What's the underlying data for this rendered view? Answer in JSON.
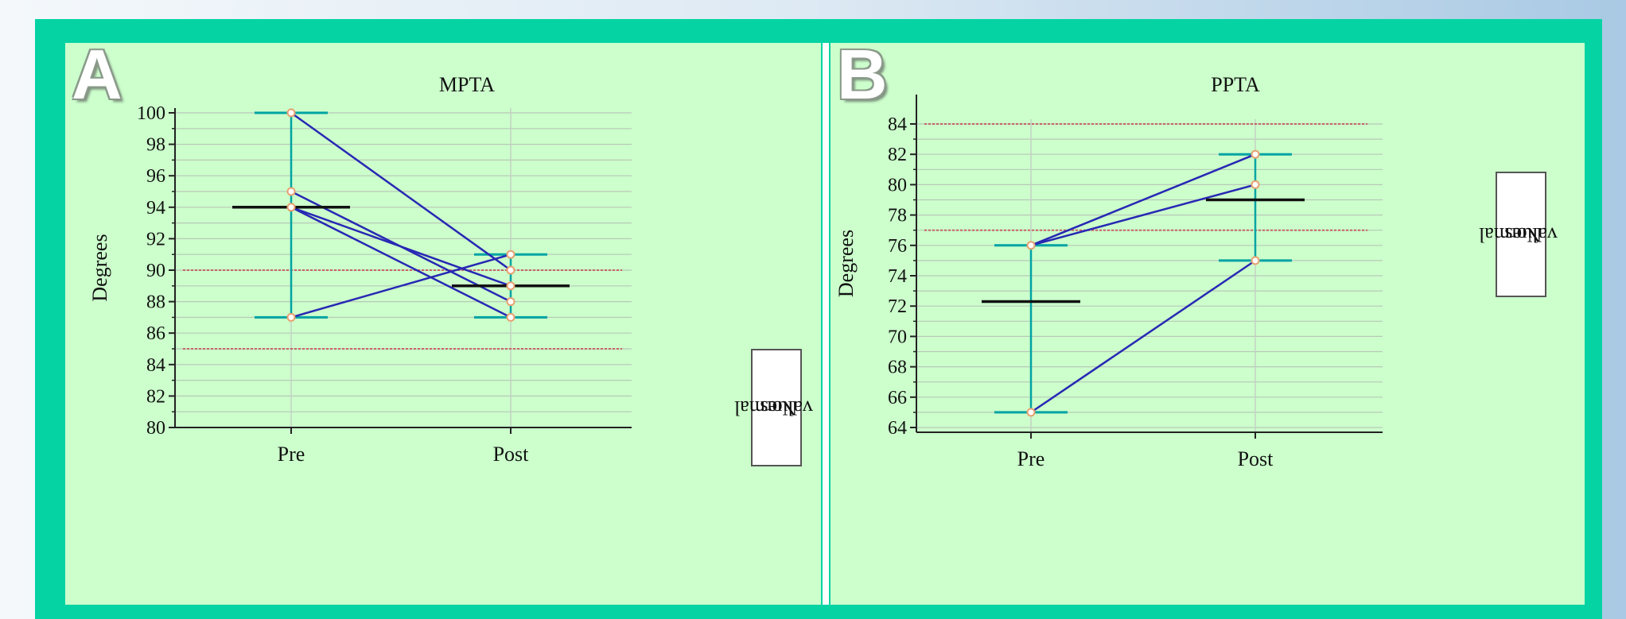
{
  "panels": [
    {
      "letter": "A",
      "legend": {
        "line1": "Normal",
        "line2": "values"
      }
    },
    {
      "letter": "B",
      "legend": {
        "line1": "Normal",
        "line2": "values"
      }
    }
  ],
  "colors": {
    "frame": "#06d3a3",
    "panel_bg": "#ccffcc",
    "range_bar": "#00a3a3",
    "patient_line": "#2828b4",
    "mean_bar": "#111111",
    "normal_bound": "#c86464",
    "point_fill": "#ffffff",
    "point_edge": "#e8a070",
    "grid": "#b8c8b8"
  },
  "chart_data": [
    {
      "type": "line",
      "title": "MPTA",
      "ylabel": "Degrees",
      "xlabel": "",
      "categories": [
        "Pre",
        "Post"
      ],
      "ylim": [
        80,
        100
      ],
      "yticks": [
        80,
        82,
        84,
        86,
        88,
        90,
        92,
        94,
        96,
        98,
        100
      ],
      "grid": true,
      "normal_range": [
        85,
        90
      ],
      "normal_label": "Normal values",
      "patients": [
        {
          "values": [
            100,
            90
          ]
        },
        {
          "values": [
            95,
            88
          ]
        },
        {
          "values": [
            94,
            89
          ]
        },
        {
          "values": [
            94,
            87
          ]
        },
        {
          "values": [
            87,
            91
          ]
        }
      ],
      "range": {
        "Pre": [
          87,
          100
        ],
        "Post": [
          87,
          91
        ]
      },
      "mean": {
        "Pre": 94,
        "Post": 89
      }
    },
    {
      "type": "line",
      "title": "PPTA",
      "ylabel": "Degrees",
      "xlabel": "",
      "categories": [
        "Pre",
        "Post"
      ],
      "ylim": [
        64,
        85
      ],
      "yticks": [
        64,
        66,
        68,
        70,
        72,
        74,
        76,
        78,
        80,
        82,
        84
      ],
      "grid": true,
      "normal_range": [
        77,
        84
      ],
      "normal_label": "Normal values",
      "patients": [
        {
          "values": [
            76,
            82
          ]
        },
        {
          "values": [
            76,
            80
          ]
        },
        {
          "values": [
            65,
            75
          ]
        }
      ],
      "range": {
        "Pre": [
          65,
          76
        ],
        "Post": [
          75,
          82
        ]
      },
      "mean": {
        "Pre": 72.3,
        "Post": 79
      }
    }
  ]
}
